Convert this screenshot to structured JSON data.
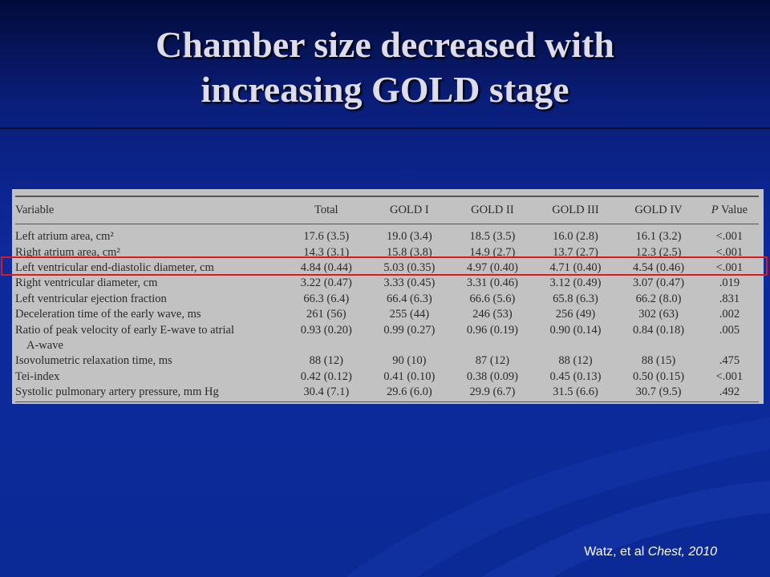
{
  "slide": {
    "title_line1": "Chamber size decreased with",
    "title_line2": "increasing GOLD stage",
    "citation_authors": "Watz, et al",
    "citation_journal": "Chest, 2010"
  },
  "table": {
    "headers": {
      "variable": "Variable",
      "total": "Total",
      "g1": "GOLD I",
      "g2": "GOLD II",
      "g3": "GOLD III",
      "g4": "GOLD IV",
      "p_italic": "P",
      "p_rest": " Value"
    },
    "rows": [
      {
        "variable": "Left atrium area, cm²",
        "total": "17.6 (3.5)",
        "g1": "19.0 (3.4)",
        "g2": "18.5 (3.5)",
        "g3": "16.0 (2.8)",
        "g4": "16.1 (3.2)",
        "p": "<.001"
      },
      {
        "variable": "Right atrium area, cm²",
        "total": "14.3 (3.1)",
        "g1": "15.8 (3.8)",
        "g2": "14.9 (2.7)",
        "g3": "13.7 (2.7)",
        "g4": "12.3 (2.5)",
        "p": "<.001"
      },
      {
        "variable": "Left ventricular end-diastolic diameter, cm",
        "total": "4.84 (0.44)",
        "g1": "5.03 (0.35)",
        "g2": "4.97 (0.40)",
        "g3": "4.71 (0.40)",
        "g4": "4.54 (0.46)",
        "p": "<.001"
      },
      {
        "variable": "Right ventricular diameter, cm",
        "total": "3.22 (0.47)",
        "g1": "3.33 (0.45)",
        "g2": "3.31 (0.46)",
        "g3": "3.12 (0.49)",
        "g4": "3.07 (0.47)",
        "p": ".019"
      },
      {
        "variable": "Left ventricular ejection fraction",
        "total": "66.3 (6.4)",
        "g1": "66.4 (6.3)",
        "g2": "66.6 (5.6)",
        "g3": "65.8 (6.3)",
        "g4": "66.2 (8.0)",
        "p": ".831"
      },
      {
        "variable": "Deceleration time of the early wave, ms",
        "total": "261 (56)",
        "g1": "255 (44)",
        "g2": "246 (53)",
        "g3": "256 (49)",
        "g4": "302 (63)",
        "p": ".002"
      },
      {
        "variable": "Ratio of peak velocity of early E-wave to atrial",
        "total": "0.93 (0.20)",
        "g1": "0.99 (0.27)",
        "g2": "0.96 (0.19)",
        "g3": "0.90 (0.14)",
        "g4": "0.84 (0.18)",
        "p": ".005"
      },
      {
        "variable": "A-wave",
        "total": "",
        "g1": "",
        "g2": "",
        "g3": "",
        "g4": "",
        "p": ""
      },
      {
        "variable": "Isovolumetric relaxation time, ms",
        "total": "88 (12)",
        "g1": "90 (10)",
        "g2": "87 (12)",
        "g3": "88 (12)",
        "g4": "88 (15)",
        "p": ".475"
      },
      {
        "variable": "Tei-index",
        "total": "0.42 (0.12)",
        "g1": "0.41 (0.10)",
        "g2": "0.38 (0.09)",
        "g3": "0.45 (0.13)",
        "g4": "0.50 (0.15)",
        "p": "<.001"
      },
      {
        "variable": "Systolic pulmonary artery pressure, mm Hg",
        "total": "30.4 (7.1)",
        "g1": "29.6 (6.0)",
        "g2": "29.9 (6.7)",
        "g3": "31.5 (6.6)",
        "g4": "30.7 (9.5)",
        "p": ".492"
      }
    ]
  },
  "colors": {
    "background": "#0d2a9e",
    "title": "#dcdcec",
    "highlight": "#e01818",
    "table_bg": "#c2c2c2"
  }
}
